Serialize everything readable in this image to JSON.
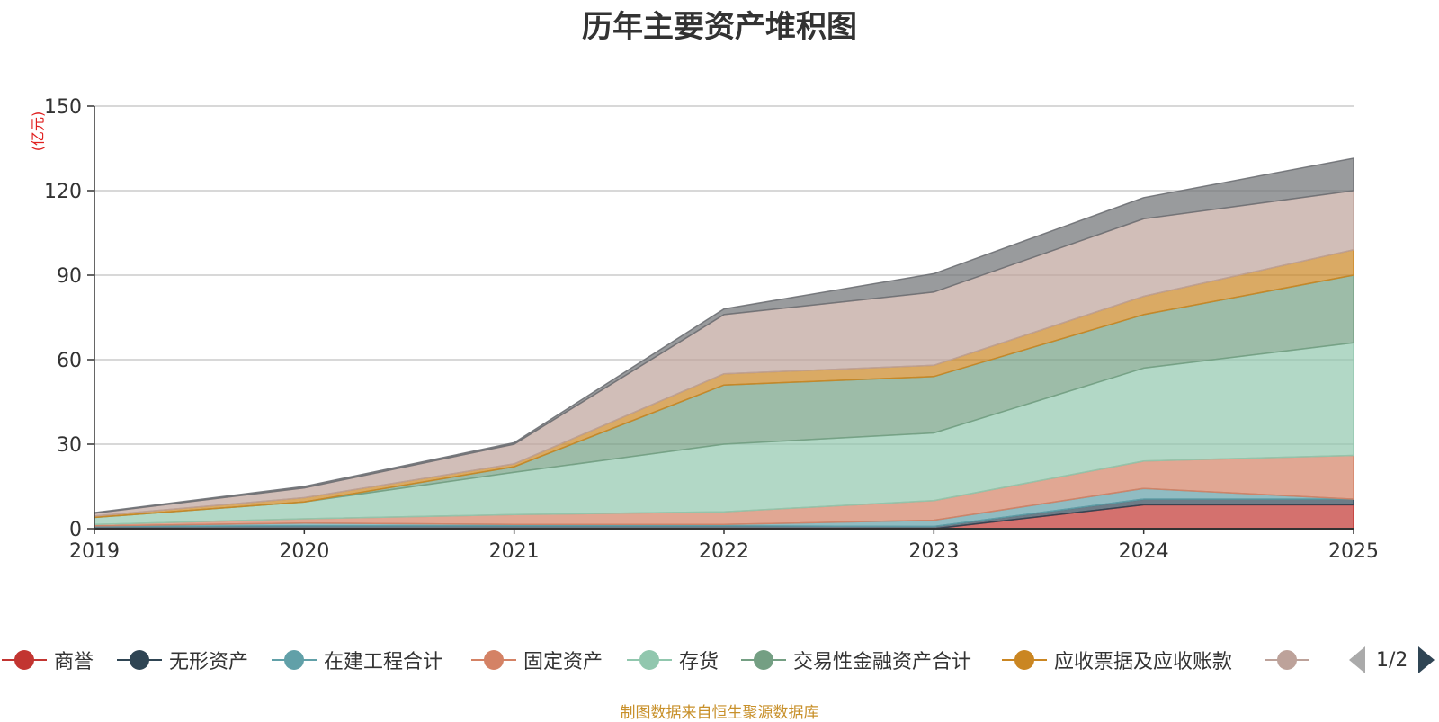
{
  "chart_data": {
    "type": "area",
    "stacked": true,
    "title": "历年主要资产堆积图",
    "unit_label": "(亿元)",
    "categories": [
      "2019",
      "2020",
      "2021",
      "2022",
      "2023",
      "2024",
      "2025"
    ],
    "y_ticks": [
      0,
      30,
      60,
      90,
      120,
      150
    ],
    "ylim": [
      0,
      150
    ],
    "series": [
      {
        "name": "商誉",
        "color": "#c23531",
        "values": [
          0,
          0,
          0,
          0,
          0,
          8.5,
          8.5
        ]
      },
      {
        "name": "无形资产",
        "color": "#2f4554",
        "values": [
          0.8,
          1.0,
          1.0,
          1.0,
          0.8,
          2.0,
          2.0
        ]
      },
      {
        "name": "在建工程合计",
        "color": "#61a0a8",
        "values": [
          0.2,
          1.0,
          0.5,
          0.5,
          2.2,
          3.8,
          0
        ]
      },
      {
        "name": "固定资产",
        "color": "#d48265",
        "values": [
          0.5,
          1.5,
          3.5,
          4.5,
          7.0,
          9.7,
          15.5
        ]
      },
      {
        "name": "存货",
        "color": "#91c7ae",
        "values": [
          2.5,
          6.0,
          15.0,
          24.0,
          24.0,
          33.0,
          40.0
        ]
      },
      {
        "name": "交易性金融资产合计",
        "color": "#749f83",
        "values": [
          0,
          0,
          2.0,
          21.0,
          20.0,
          19.0,
          24.0
        ]
      },
      {
        "name": "应收票据及应收账款",
        "color": "#ca8622",
        "values": [
          0.5,
          1.5,
          1.0,
          4.0,
          4.0,
          6.5,
          9.0
        ]
      },
      {
        "name": "",
        "color": "#bda29a",
        "values": [
          1.0,
          3.5,
          7.0,
          21.0,
          26.0,
          27.5,
          21.0
        ]
      },
      {
        "name": "",
        "color": "#6e7074",
        "values": [
          0.2,
          0.5,
          0.5,
          2.0,
          6.5,
          7.5,
          11.5
        ]
      }
    ],
    "legend_position": "bottom",
    "grid": true
  },
  "legend_items": [
    "商誉",
    "无形资产",
    "在建工程合计",
    "固定资产",
    "存货",
    "交易性金融资产合计",
    "应收票据及应收账款",
    ""
  ],
  "legend_colors": [
    "#c23531",
    "#2f4554",
    "#61a0a8",
    "#d48265",
    "#91c7ae",
    "#749f83",
    "#ca8622",
    "#bda29a"
  ],
  "pager": {
    "text": "1/2"
  },
  "source_text": "制图数据来自恒生聚源数据库"
}
